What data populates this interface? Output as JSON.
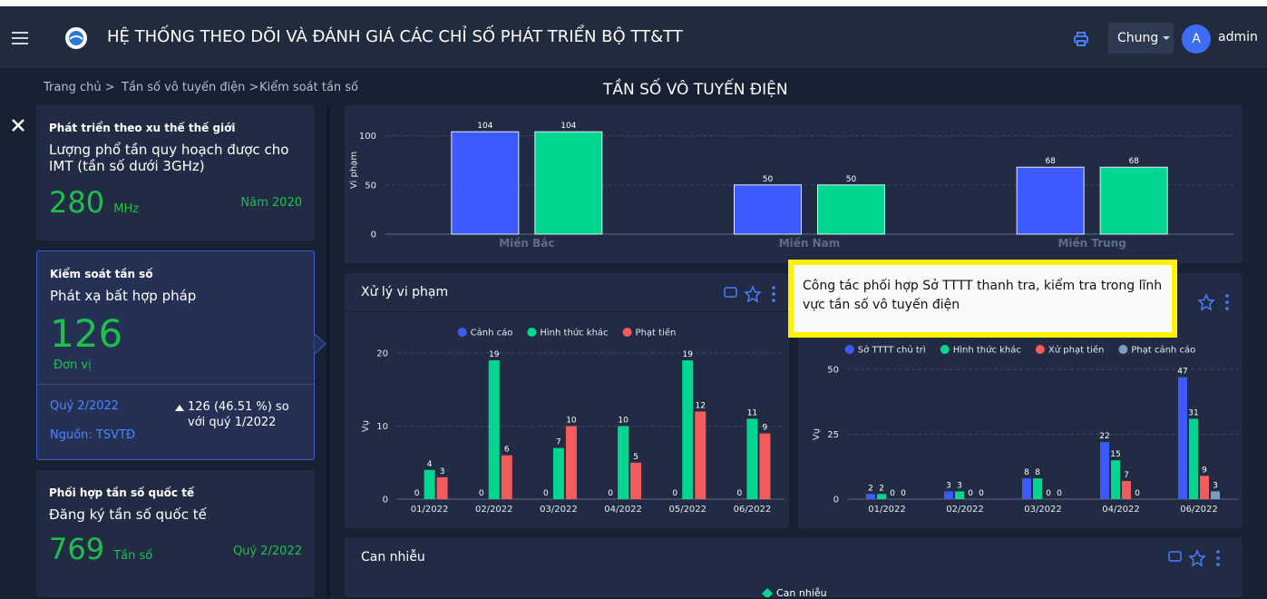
{
  "header": {
    "title": "HỆ THỐNG THEO DÕI VÀ ĐÁNH GIÁ CÁC CHỈ SỐ PHÁT TRIỂN BỘ TT&TT",
    "menu": "Chung",
    "avatar": "A",
    "user": "admin"
  },
  "breadcrumb": [
    "Trang chủ >",
    "Tần số vô tuyến điện >",
    "Kiểm soát tần số"
  ],
  "page_title": "TẦN SỐ VÔ TUYẾN ĐIỆN",
  "cards": [
    {
      "group": "Phát triển theo xu thế thế giới",
      "indicator": "Lượng phổ tần quy hoạch được cho IMT (tần số dưới 3GHz)",
      "value": 280,
      "unit": "MHz",
      "period": "Năm 2020"
    },
    {
      "group": "Kiểm soát tần số",
      "indicator": "Phát xạ bất hợp pháp",
      "value": 126,
      "unit": "Đơn vị",
      "period": "Quý 2/2022",
      "source": "Nguồn: TSVTĐ",
      "change": "126 (46.51 %) so với quý 1/2022"
    },
    {
      "group": "Phối hợp tần số quốc tế",
      "indicator": "Đăng ký tần số quốc tế",
      "value": 769,
      "unit": "Tần số",
      "period": "Quý 2/2022"
    }
  ],
  "chart_data": [
    {
      "type": "bar",
      "ylabel": "Vi phạm",
      "categories": [
        "Miền Bắc",
        "Miền Nam",
        "Miền Trung"
      ],
      "series": [
        {
          "color": "#3d5afe",
          "values": [
            104,
            50,
            68
          ]
        },
        {
          "color": "#00d68f",
          "values": [
            104,
            50,
            68
          ]
        }
      ],
      "ylim": [
        0,
        130
      ],
      "yticks": [
        0,
        50,
        100
      ],
      "grid": true
    },
    {
      "type": "bar",
      "title": "Xử lý vi phạm",
      "ylabel": "Vụ",
      "categories": [
        "01/2022",
        "02/2022",
        "03/2022",
        "04/2022",
        "05/2022",
        "06/2022"
      ],
      "series": [
        {
          "name": "Cảnh cáo",
          "color": "#3d5afe",
          "values": [
            0,
            0,
            0,
            0,
            0,
            0
          ]
        },
        {
          "name": "Hình thức khác",
          "color": "#00d68f",
          "values": [
            4,
            19,
            7,
            10,
            19,
            11
          ]
        },
        {
          "name": "Phạt tiền",
          "color": "#f25c5c",
          "values": [
            3,
            6,
            10,
            5,
            12,
            9
          ]
        }
      ],
      "ylim": [
        0,
        20
      ],
      "yticks": [
        0,
        10,
        20
      ],
      "grid": true,
      "legend": "top"
    },
    {
      "type": "bar",
      "title": "Công tác phối hợp Sở TTTT thanh tra, kiểm tra trong lĩnh vực tần số vô tuyến điện",
      "ylabel": "Vụ",
      "categories": [
        "01/2022",
        "02/2022",
        "03/2022",
        "04/2022",
        "06/2022"
      ],
      "series": [
        {
          "name": "Sở TTTT chủ trì",
          "color": "#3d5afe",
          "values": [
            2,
            3,
            8,
            22,
            47
          ]
        },
        {
          "name": "Hình thức khác",
          "color": "#00d68f",
          "values": [
            2,
            3,
            8,
            15,
            31
          ]
        },
        {
          "name": "Xử phạt tiền",
          "color": "#f25c5c",
          "values": [
            0,
            0,
            0,
            7,
            9
          ]
        },
        {
          "name": "Phạt cảnh cáo",
          "color": "#7f9bc0",
          "values": [
            0,
            0,
            0,
            0,
            3
          ]
        }
      ],
      "ylim": [
        0,
        50
      ],
      "yticks": [
        0,
        25,
        50
      ],
      "grid": true,
      "legend": "top"
    }
  ],
  "interference_panel": {
    "title": "Can nhiễu",
    "legend": "Can nhiễu"
  }
}
